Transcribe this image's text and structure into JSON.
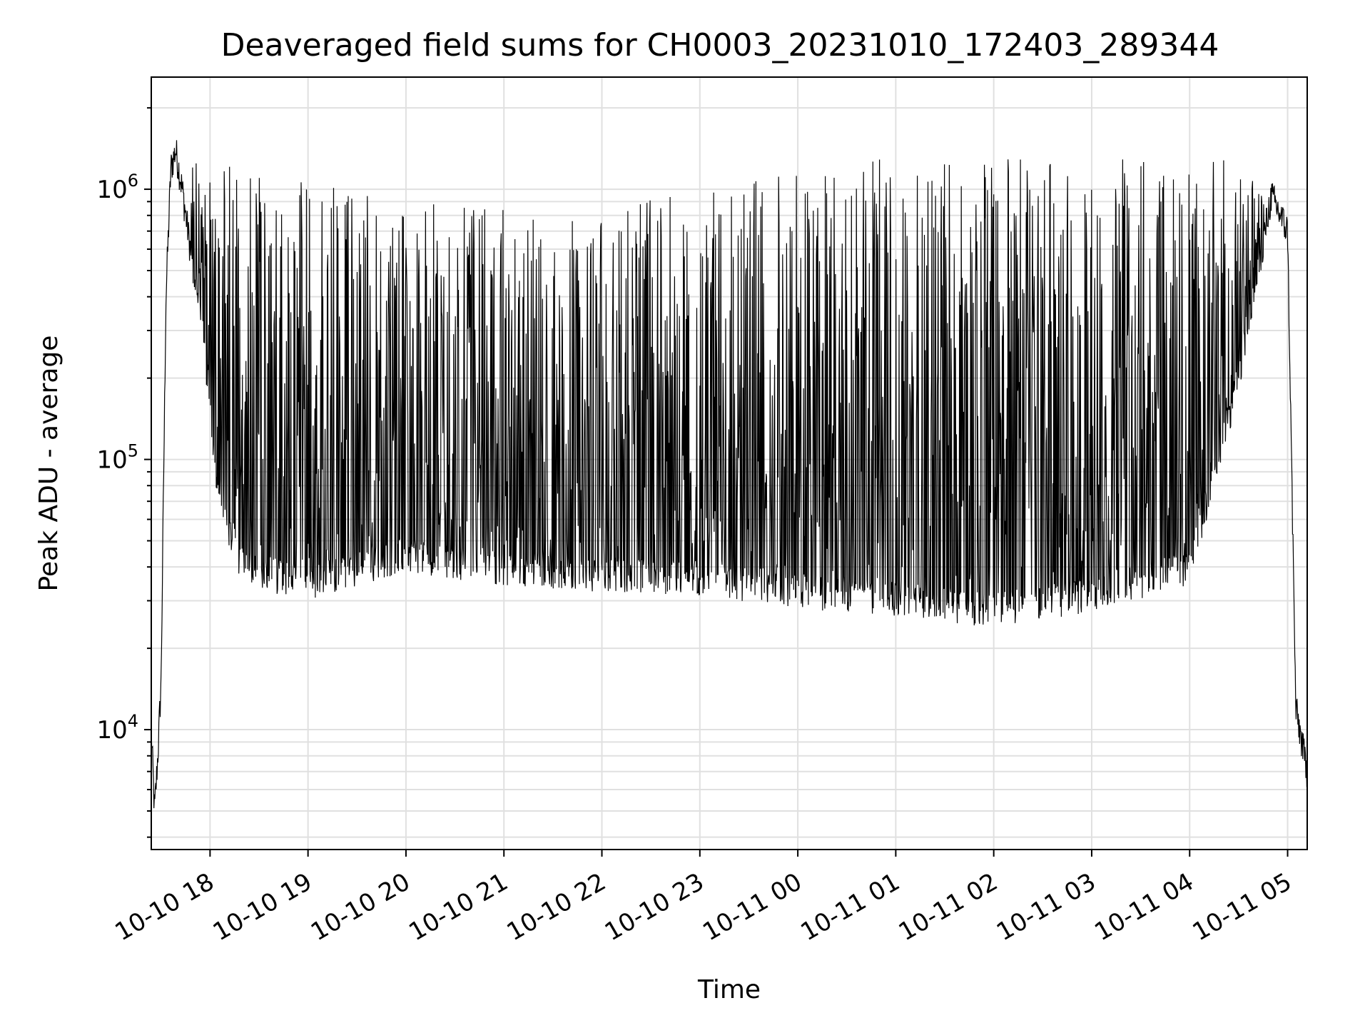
{
  "chart_data": {
    "type": "line",
    "title": "Deaveraged field sums for CH0003_20231010_172403_289344",
    "xlabel": "Time",
    "ylabel": "Peak ADU - average",
    "yscale": "log",
    "ylim": [
      3600,
      2600000
    ],
    "xlim": [
      "2023-10-10 17:24",
      "2023-10-11 05:12"
    ],
    "x_ticks": [
      "10-10 18",
      "10-10 19",
      "10-10 20",
      "10-10 21",
      "10-10 22",
      "10-10 23",
      "10-11 00",
      "10-11 01",
      "10-11 02",
      "10-11 03",
      "10-11 04",
      "10-11 05"
    ],
    "y_ticks": [
      {
        "base": "10",
        "exp": "4",
        "value": 10000
      },
      {
        "base": "10",
        "exp": "5",
        "value": 100000
      },
      {
        "base": "10",
        "exp": "6",
        "value": 1000000
      }
    ],
    "grid": true,
    "line_color": "#000000",
    "grid_color": "#e0e0e0",
    "series": [
      {
        "description_points": [
          [
            "2023-10-10 17:24",
            10000
          ],
          [
            "2023-10-10 17:26",
            5000
          ],
          [
            "2023-10-10 17:28",
            8000
          ],
          [
            "2023-10-10 17:30",
            15000
          ],
          [
            "2023-10-10 17:33",
            400000
          ],
          [
            "2023-10-10 17:36",
            1200000
          ],
          [
            "2023-10-10 17:39",
            1400000
          ],
          [
            "2023-10-10 17:43",
            1000000
          ],
          [
            "2023-10-10 17:48",
            600000
          ],
          [
            "2023-10-10 17:55",
            300000
          ],
          [
            "2023-10-10 18:05",
            70000
          ],
          [
            "2023-10-10 18:20",
            40000
          ],
          [
            "2023-10-10 19:00",
            35000
          ],
          [
            "2023-10-10 20:00",
            45000
          ],
          [
            "2023-10-10 21:00",
            40000
          ],
          [
            "2023-10-10 22:00",
            38000
          ],
          [
            "2023-10-10 23:00",
            37000
          ],
          [
            "2023-10-11 00:00",
            33000
          ],
          [
            "2023-10-11 01:00",
            31000
          ],
          [
            "2023-10-11 02:00",
            28000
          ],
          [
            "2023-10-11 03:00",
            32000
          ],
          [
            "2023-10-11 04:00",
            40000
          ],
          [
            "2023-10-11 04:30",
            200000
          ],
          [
            "2023-10-11 04:50",
            950000
          ],
          [
            "2023-10-11 05:00",
            700000
          ],
          [
            "2023-10-11 05:05",
            12000
          ],
          [
            "2023-10-11 05:12",
            7000
          ]
        ]
      }
    ]
  }
}
